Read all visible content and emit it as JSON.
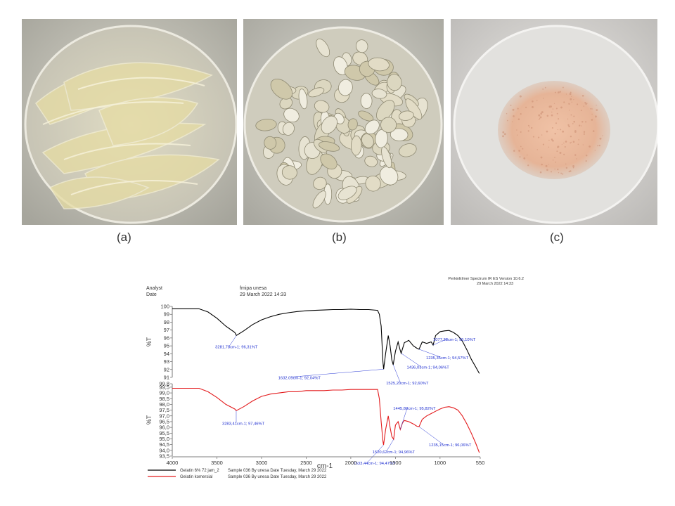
{
  "panels": [
    {
      "caption": "(a)"
    },
    {
      "caption": "(b)"
    },
    {
      "caption": "(c)"
    }
  ],
  "header": {
    "analyst_label": "Analyst",
    "date_label": "Date",
    "analyst_value": "fmipa unesa",
    "date_value": "29 March 2022 14:33",
    "software": "PerkinElmer Spectrum IR ES Version 10.6.2",
    "software_date": "29 March 2022 14:33"
  },
  "chart_data": {
    "type": "line",
    "xlabel": "cm-1",
    "xlim": [
      4000,
      550
    ],
    "x_ticks": [
      "4000",
      "3500",
      "3000",
      "2500",
      "2000",
      "1500",
      "1000",
      "550"
    ],
    "series": [
      {
        "name": "Gelatin 6% 72 jam_2",
        "color": "#000000",
        "ylabel": "%T",
        "ylim": [
          91,
          100
        ],
        "y_ticks": [
          "100",
          "99",
          "98",
          "97",
          "96",
          "95",
          "94",
          "93",
          "92",
          "91"
        ],
        "x": [
          4000,
          3700,
          3600,
          3500,
          3400,
          3300,
          3281.78,
          3200,
          3100,
          3000,
          2900,
          2800,
          2700,
          2600,
          2500,
          2400,
          2300,
          2200,
          2100,
          2000,
          1900,
          1800,
          1700,
          1680,
          1660,
          1640,
          1632.05,
          1610,
          1580,
          1560,
          1540,
          1525.2,
          1500,
          1470,
          1450,
          1436.03,
          1400,
          1350,
          1300,
          1260,
          1235.35,
          1200,
          1150,
          1100,
          1077.38,
          1050,
          1000,
          950,
          900,
          850,
          800,
          750,
          700,
          650,
          600,
          560
        ],
        "y": [
          99.7,
          99.7,
          99.3,
          98.5,
          97.5,
          96.7,
          96.31,
          96.9,
          97.7,
          98.3,
          98.7,
          99.0,
          99.2,
          99.35,
          99.45,
          99.5,
          99.55,
          99.6,
          99.6,
          99.65,
          99.6,
          99.6,
          99.5,
          99.0,
          97.5,
          93.0,
          92.04,
          94.0,
          96.3,
          95.0,
          93.2,
          92.6,
          94.3,
          95.5,
          94.6,
          94.06,
          95.4,
          95.7,
          95.0,
          94.7,
          94.57,
          95.5,
          95.3,
          95.5,
          95.1,
          96.3,
          96.8,
          96.9,
          96.95,
          96.7,
          96.3,
          95.6,
          94.5,
          93.3,
          92.3,
          91.5
        ]
      },
      {
        "name": "Gelatin komersial",
        "color": "#e31a1c",
        "ylabel": "%T",
        "ylim": [
          93.5,
          99.8
        ],
        "y_ticks": [
          "99,8",
          "99,5",
          "99,0",
          "98,5",
          "98,0",
          "97,5",
          "97,0",
          "96,5",
          "96,0",
          "95,5",
          "95,0",
          "94,5",
          "94,0",
          "93,5"
        ],
        "x": [
          4000,
          3700,
          3600,
          3500,
          3400,
          3300,
          3283.41,
          3200,
          3100,
          3000,
          2900,
          2800,
          2700,
          2600,
          2500,
          2400,
          2300,
          2200,
          2100,
          2000,
          1900,
          1800,
          1700,
          1680,
          1660,
          1640,
          1633.44,
          1610,
          1580,
          1560,
          1540,
          1520.62,
          1500,
          1470,
          1445.8,
          1420,
          1400,
          1350,
          1300,
          1260,
          1235.15,
          1200,
          1150,
          1100,
          1050,
          1000,
          950,
          900,
          850,
          800,
          750,
          700,
          650,
          600,
          560
        ],
        "y": [
          99.4,
          99.4,
          99.1,
          98.6,
          98.0,
          97.6,
          97.46,
          97.8,
          98.3,
          98.7,
          98.9,
          99.0,
          99.1,
          99.1,
          99.2,
          99.2,
          99.2,
          99.25,
          99.25,
          99.3,
          99.3,
          99.3,
          99.3,
          98.5,
          96.5,
          94.8,
          94.47,
          95.8,
          97.0,
          96.0,
          95.2,
          94.96,
          96.2,
          96.5,
          95.82,
          96.4,
          96.6,
          96.5,
          96.3,
          96.1,
          96.06,
          96.7,
          97.0,
          97.2,
          97.4,
          97.6,
          97.75,
          97.8,
          97.7,
          97.5,
          97.0,
          96.3,
          95.5,
          94.6,
          93.8
        ]
      }
    ],
    "annotations": [
      {
        "series": 0,
        "text": "3281,78cm-1; 96,31%T"
      },
      {
        "series": 0,
        "text": "1632,05cm-1; 92,04%T"
      },
      {
        "series": 0,
        "text": "1525,20cm-1; 92,60%T"
      },
      {
        "series": 0,
        "text": "1436,03cm-1; 94,06%T"
      },
      {
        "series": 0,
        "text": "1235,35cm-1; 94,57%T"
      },
      {
        "series": 0,
        "text": "1077,38cm-1; 95,10%T"
      },
      {
        "series": 1,
        "text": "3283,41cm-1; 97,46%T"
      },
      {
        "series": 1,
        "text": "1445,80cm-1; 95,82%T"
      },
      {
        "series": 1,
        "text": "1235,15cm-1; 96,06%T"
      },
      {
        "series": 1,
        "text": "1520,62cm-1; 94,96%T"
      },
      {
        "series": 1,
        "text": "1633,44cm-1; 94,47%T"
      }
    ]
  },
  "legend": [
    {
      "name": "Gelatin 6% 72 jam_2",
      "info": "Sample 036 By unesa Date Tuesday, March 29 2022",
      "color": "#000000"
    },
    {
      "name": "Gelatin komersial",
      "info": "Sample 036 By unesa Date Tuesday, March 29 2022",
      "color": "#e31a1c"
    }
  ]
}
